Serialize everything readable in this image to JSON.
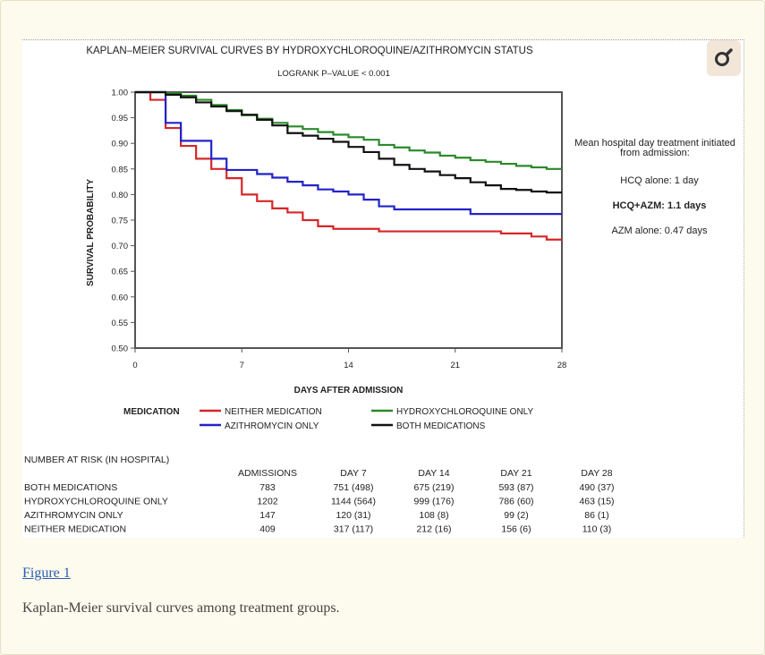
{
  "figure_link": "Figure 1",
  "caption": "Kaplan-Meier survival curves among treatment groups.",
  "chart_data": {
    "type": "line",
    "title": "KAPLAN–MEIER SURVIVAL CURVES BY HYDROXYCHLOROQUINE/AZITHROMYCIN STATUS",
    "subtitle": "LOGRANK P–VALUE < 0.001",
    "xlabel": "DAYS AFTER ADMISSION",
    "ylabel": "SURVIVAL PROBABILITY",
    "xlim": [
      0,
      28
    ],
    "ylim": [
      0.5,
      1.0
    ],
    "xticks": [
      0,
      7,
      14,
      21,
      28
    ],
    "yticks": [
      0.5,
      0.55,
      0.6,
      0.65,
      0.7,
      0.75,
      0.8,
      0.85,
      0.9,
      0.95,
      1.0
    ],
    "legend_title": "MEDICATION",
    "series": [
      {
        "name": "NEITHER MEDICATION",
        "color": "#d62728",
        "steps": [
          [
            0,
            1.0
          ],
          [
            1,
            0.985
          ],
          [
            2,
            0.93
          ],
          [
            3,
            0.895
          ],
          [
            4,
            0.87
          ],
          [
            5,
            0.85
          ],
          [
            6,
            0.832
          ],
          [
            7,
            0.8
          ],
          [
            8,
            0.787
          ],
          [
            9,
            0.773
          ],
          [
            10,
            0.765
          ],
          [
            11,
            0.75
          ],
          [
            12,
            0.738
          ],
          [
            13,
            0.733
          ],
          [
            16,
            0.728
          ],
          [
            24,
            0.724
          ],
          [
            26,
            0.718
          ],
          [
            27,
            0.712
          ],
          [
            28,
            0.712
          ]
        ]
      },
      {
        "name": "AZITHROMYCIN ONLY",
        "color": "#2323c8",
        "steps": [
          [
            0,
            1.0
          ],
          [
            2,
            0.94
          ],
          [
            3,
            0.905
          ],
          [
            5,
            0.87
          ],
          [
            6,
            0.848
          ],
          [
            8,
            0.84
          ],
          [
            9,
            0.833
          ],
          [
            10,
            0.825
          ],
          [
            11,
            0.818
          ],
          [
            12,
            0.81
          ],
          [
            13,
            0.806
          ],
          [
            14,
            0.8
          ],
          [
            15,
            0.79
          ],
          [
            16,
            0.777
          ],
          [
            17,
            0.771
          ],
          [
            22,
            0.762
          ],
          [
            28,
            0.762
          ]
        ]
      },
      {
        "name": "HYDROXYCHLOROQUINE ONLY",
        "color": "#2a8a2a",
        "steps": [
          [
            0,
            1.0
          ],
          [
            2,
            0.998
          ],
          [
            3,
            0.993
          ],
          [
            4,
            0.985
          ],
          [
            5,
            0.975
          ],
          [
            6,
            0.965
          ],
          [
            7,
            0.955
          ],
          [
            8,
            0.948
          ],
          [
            9,
            0.94
          ],
          [
            10,
            0.933
          ],
          [
            11,
            0.928
          ],
          [
            12,
            0.922
          ],
          [
            13,
            0.917
          ],
          [
            14,
            0.912
          ],
          [
            15,
            0.907
          ],
          [
            16,
            0.897
          ],
          [
            17,
            0.892
          ],
          [
            18,
            0.886
          ],
          [
            19,
            0.882
          ],
          [
            20,
            0.876
          ],
          [
            21,
            0.872
          ],
          [
            22,
            0.867
          ],
          [
            23,
            0.864
          ],
          [
            24,
            0.86
          ],
          [
            25,
            0.856
          ],
          [
            26,
            0.853
          ],
          [
            27,
            0.85
          ],
          [
            28,
            0.85
          ]
        ]
      },
      {
        "name": "BOTH MEDICATIONS",
        "color": "#111111",
        "steps": [
          [
            0,
            1.0
          ],
          [
            2,
            0.995
          ],
          [
            3,
            0.99
          ],
          [
            4,
            0.98
          ],
          [
            5,
            0.972
          ],
          [
            6,
            0.963
          ],
          [
            7,
            0.956
          ],
          [
            8,
            0.946
          ],
          [
            9,
            0.935
          ],
          [
            10,
            0.92
          ],
          [
            11,
            0.915
          ],
          [
            12,
            0.909
          ],
          [
            13,
            0.903
          ],
          [
            14,
            0.893
          ],
          [
            15,
            0.883
          ],
          [
            16,
            0.87
          ],
          [
            17,
            0.858
          ],
          [
            18,
            0.85
          ],
          [
            19,
            0.845
          ],
          [
            20,
            0.838
          ],
          [
            21,
            0.832
          ],
          [
            22,
            0.824
          ],
          [
            23,
            0.818
          ],
          [
            24,
            0.811
          ],
          [
            25,
            0.809
          ],
          [
            26,
            0.806
          ],
          [
            27,
            0.804
          ],
          [
            28,
            0.804
          ]
        ]
      }
    ],
    "annotations": {
      "heading_line1": "Mean hospital day treatment initiated",
      "heading_line2": "from admission:",
      "hcq": "HCQ alone: 1 day",
      "hcq_azm": "HCQ+AZM: 1.1 days",
      "azm": "AZM alone: 0.47 days",
      "hcq_color": "#2a7a2a",
      "hcq_azm_color": "#111111",
      "azm_color": "#2a4fb8"
    },
    "risk_table": {
      "title": "NUMBER AT RISK (IN HOSPITAL)",
      "headers": [
        "ADMISSIONS",
        "DAY 7",
        "DAY 14",
        "DAY 21",
        "DAY 28"
      ],
      "rows": [
        {
          "label": "BOTH MEDICATIONS",
          "values": [
            "783",
            "751 (498)",
            "675 (219)",
            "593 (87)",
            "490 (37)"
          ]
        },
        {
          "label": "HYDROXYCHLOROQUINE ONLY",
          "values": [
            "1202",
            "1144 (564)",
            "999 (176)",
            "786 (60)",
            "463 (15)"
          ]
        },
        {
          "label": "AZITHROMYCIN ONLY",
          "values": [
            "147",
            "120 (31)",
            "108 (8)",
            "99 (2)",
            "86 (1)"
          ]
        },
        {
          "label": "NEITHER MEDICATION",
          "values": [
            "409",
            "317 (117)",
            "212 (16)",
            "156 (6)",
            "110 (3)"
          ]
        }
      ]
    }
  }
}
